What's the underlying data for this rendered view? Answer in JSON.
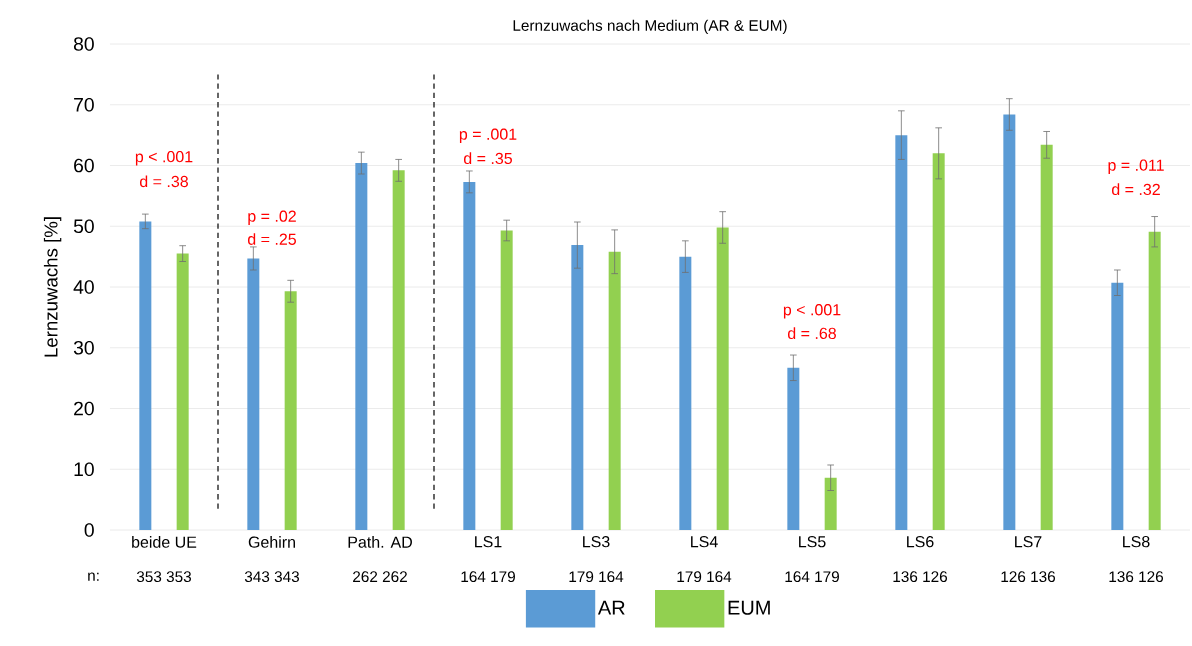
{
  "chart_data": {
    "type": "bar",
    "title": "Lernzuwachs nach Medium (AR & EUM)",
    "ylabel": "Lernzuwachs [%]",
    "categories": [
      "beide UE",
      "Gehirn",
      "Path. AD",
      "LS1",
      "LS3",
      "LS4",
      "LS5",
      "LS6",
      "LS7",
      "LS8"
    ],
    "series": [
      {
        "name": "AR",
        "color": "#5b9bd5",
        "values": [
          50.8,
          44.7,
          60.4,
          57.3,
          46.9,
          45.0,
          26.7,
          65.0,
          68.4,
          40.7
        ],
        "errors": [
          1.2,
          1.9,
          1.8,
          1.8,
          3.8,
          2.6,
          2.1,
          4.0,
          2.6,
          2.1
        ]
      },
      {
        "name": "EUM",
        "color": "#92d050",
        "values": [
          45.5,
          39.3,
          59.2,
          49.3,
          45.8,
          49.8,
          8.6,
          62.0,
          63.4,
          49.1
        ],
        "errors": [
          1.3,
          1.8,
          1.8,
          1.7,
          3.6,
          2.6,
          2.1,
          4.2,
          2.2,
          2.5
        ]
      }
    ],
    "ylim": [
      0,
      80
    ],
    "yticks": [
      0,
      10,
      20,
      30,
      40,
      50,
      60,
      70,
      80
    ],
    "grid": "y",
    "legend": "bottom",
    "annotations": [
      "p < .001",
      "d = .38",
      "p = .02",
      "d = .25",
      "p = .001",
      "d = .35",
      "p < .001",
      "d = .68",
      "p = .011",
      "d = .32",
      "n:",
      "353 353",
      "343 343",
      "262 262",
      "164 179",
      "179 164",
      "179 164",
      "164 179",
      "136 126",
      "126 136",
      "136 126"
    ]
  }
}
